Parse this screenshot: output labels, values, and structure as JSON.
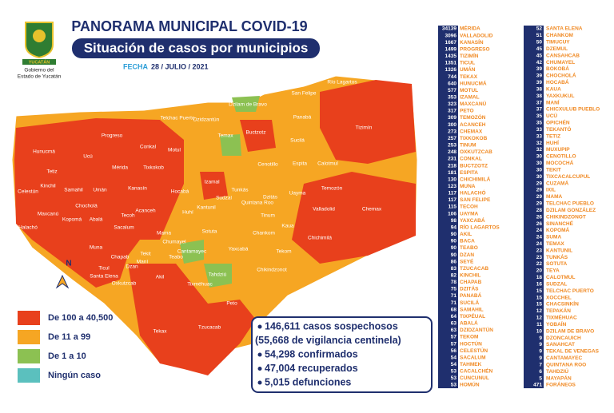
{
  "header": {
    "title": "PANORAMA MUNICIPAL COVID-19",
    "subtitle": "Situación de casos por municipios",
    "date_label": "FECHA",
    "date": "28 / JULIO / 2021",
    "logo_text": "YUCATÁN",
    "government": [
      "Gobierno del",
      "Estado de Yucatán"
    ]
  },
  "map": {
    "north": "N",
    "labels": [
      "Río Lagartos",
      "San Felipe",
      "Dzilam de Bravo",
      "Tizimín",
      "Panabá",
      "Buctzotz",
      "Sucilá",
      "Espita",
      "Calotmul",
      "Temozón",
      "Chemax",
      "Valladolid",
      "Uayma",
      "Tinum",
      "Kaua",
      "Chichimilá",
      "Chankom",
      "Tekom",
      "Chikindzonot",
      "Yaxcabá",
      "Sotuta",
      "Cenotillo",
      "Dzitás",
      "Tunkás",
      "Quintana Roo",
      "Temax",
      "Izamal",
      "Sudzal",
      "Kantunil",
      "Hocabá",
      "Huhí",
      "Cantamayec",
      "Tahdziú",
      "Peto",
      "Tzucacab",
      "Tekax",
      "Akil",
      "Oxkutzcab",
      "Ticul",
      "Santa Elena",
      "Muna",
      "Sacalum",
      "Abalá",
      "Kopomá",
      "Chocholá",
      "Maxcanú",
      "Halachó",
      "Celestún",
      "Kinchil",
      "Samahil",
      "Umán",
      "Tetiz",
      "Hunucmá",
      "Ucú",
      "Mérida",
      "Progreso",
      "Kanasín",
      "Acanceh",
      "Tecoh",
      "Tekit",
      "Mama",
      "Chumayel",
      "Teabo",
      "Chapab",
      "Dzan",
      "Maní",
      "Motul",
      "Conkal",
      "Tixkokob",
      "Telchac Puerto",
      "Dzidzantún",
      "Tixméhuac"
    ]
  },
  "legend": [
    {
      "label": "De 100 a 40,500",
      "color": "#e8401c"
    },
    {
      "label": "De 11 a 99",
      "color": "#f6a623"
    },
    {
      "label": "De 1 a 10",
      "color": "#8cc152"
    },
    {
      "label": "Ningún caso",
      "color": "#5bc0be"
    }
  ],
  "summary": [
    "146,611 casos sospechosos",
    "(55,668 de vigilancia centinela)",
    "54,298 confirmados",
    "47,004 recuperados",
    "5,015 defunciones"
  ],
  "table": {
    "columns": [
      [
        [
          34139,
          "MÉRIDA"
        ],
        [
          3096,
          "VALLADOLID"
        ],
        [
          1667,
          "KANASÍN"
        ],
        [
          1499,
          "PROGRESO"
        ],
        [
          1435,
          "TIZIMÍN"
        ],
        [
          1351,
          "TICUL"
        ],
        [
          1326,
          "UMÁN"
        ],
        [
          744,
          "TEKAX"
        ],
        [
          640,
          "HUNUCMÁ"
        ],
        [
          577,
          "MOTUL"
        ],
        [
          353,
          "IZAMAL"
        ],
        [
          323,
          "MAXCANÚ"
        ],
        [
          317,
          "PETO"
        ],
        [
          309,
          "TEMOZÓN"
        ],
        [
          300,
          "ACANCEH"
        ],
        [
          273,
          "CHEMAX"
        ],
        [
          257,
          "TIXKOKOB"
        ],
        [
          253,
          "TINUM"
        ],
        [
          248,
          "OXKUTZCAB"
        ],
        [
          231,
          "CONKAL"
        ],
        [
          218,
          "BUCTZOTZ"
        ],
        [
          181,
          "ESPITA"
        ],
        [
          130,
          "CHICHIMILÁ"
        ],
        [
          123,
          "MUNA"
        ],
        [
          117,
          "HALACHÓ"
        ],
        [
          117,
          "SAN FELIPE"
        ],
        [
          115,
          "TECOH"
        ],
        [
          106,
          "UAYMA"
        ],
        [
          98,
          "YAXCABÁ"
        ],
        [
          94,
          "RÍO LAGARTOS"
        ],
        [
          90,
          "AKIL"
        ],
        [
          90,
          "BACA"
        ],
        [
          90,
          "TEABO"
        ],
        [
          90,
          "DZAN"
        ],
        [
          86,
          "SEYÉ"
        ],
        [
          83,
          "TZUCACAB"
        ],
        [
          82,
          "KINCHIL"
        ],
        [
          78,
          "CHAPAB"
        ],
        [
          75,
          "DZITÁS"
        ],
        [
          71,
          "PANABÁ"
        ],
        [
          71,
          "SUCILÁ"
        ],
        [
          68,
          "SAMAHIL"
        ],
        [
          64,
          "TIXPÉUAL"
        ],
        [
          63,
          "ABALÁ"
        ],
        [
          63,
          "DZIDZANTÚN"
        ],
        [
          57,
          "TEKOM"
        ],
        [
          57,
          "HOCTÚN"
        ],
        [
          56,
          "CELESTÚN"
        ],
        [
          54,
          "SACALUM"
        ],
        [
          54,
          "TAHMEK"
        ],
        [
          53,
          "CACALCHÉN"
        ],
        [
          53,
          "CUNCUNUL"
        ],
        [
          53,
          "HOMÚN"
        ]
      ],
      [
        [
          52,
          "SANTA ELENA"
        ],
        [
          51,
          "CHANKOM"
        ],
        [
          50,
          "TIMUCUY"
        ],
        [
          45,
          "DZEMUL"
        ],
        [
          45,
          "CANSAHCAB"
        ],
        [
          42,
          "CHUMAYEL"
        ],
        [
          39,
          "BOKOBÁ"
        ],
        [
          39,
          "CHOCHOLÁ"
        ],
        [
          39,
          "HOCABÁ"
        ],
        [
          38,
          "KAUA"
        ],
        [
          38,
          "YAXKUKUL"
        ],
        [
          37,
          "MANÍ"
        ],
        [
          37,
          "CHICXULUB PUEBLO"
        ],
        [
          35,
          "UCÚ"
        ],
        [
          35,
          "OPICHÉN"
        ],
        [
          33,
          "TEKANTÓ"
        ],
        [
          33,
          "TETIZ"
        ],
        [
          32,
          "HUHÍ"
        ],
        [
          32,
          "MUXUPIP"
        ],
        [
          30,
          "CENOTILLO"
        ],
        [
          30,
          "MOCOCHÁ"
        ],
        [
          30,
          "TEKIT"
        ],
        [
          30,
          "TIXCACALCUPUL"
        ],
        [
          29,
          "CUZAMÁ"
        ],
        [
          29,
          "IXIL"
        ],
        [
          29,
          "MAMA"
        ],
        [
          29,
          "TELCHAC PUEBLO"
        ],
        [
          28,
          "DZILAM GONZÁLEZ"
        ],
        [
          26,
          "CHIKINDZONOT"
        ],
        [
          26,
          "SINANCHÉ"
        ],
        [
          24,
          "KOPOMÁ"
        ],
        [
          24,
          "SUMA"
        ],
        [
          24,
          "TEMAX"
        ],
        [
          23,
          "KANTUNIL"
        ],
        [
          23,
          "TUNKÁS"
        ],
        [
          22,
          "SOTUTA"
        ],
        [
          20,
          "TEYA"
        ],
        [
          18,
          "CALOTMUL"
        ],
        [
          16,
          "SUDZAL"
        ],
        [
          15,
          "TELCHAC PUERTO"
        ],
        [
          15,
          "XOCCHEL"
        ],
        [
          15,
          "CHACSINKÍN"
        ],
        [
          12,
          "TEPAKÁN"
        ],
        [
          12,
          "TIXMÉHUAC"
        ],
        [
          11,
          "YOBAÍN"
        ],
        [
          10,
          "DZILAM DE BRAVO"
        ],
        [
          9,
          "DZONCAUICH"
        ],
        [
          9,
          "SANAHCAT"
        ],
        [
          9,
          "TEKAL DE VENEGAS"
        ],
        [
          9,
          "CANTAMAYEC"
        ],
        [
          7,
          "QUINTANA ROO"
        ],
        [
          6,
          "TAHDZIÚ"
        ],
        [
          5,
          "MAYAPÁN"
        ],
        [
          471,
          "FORÁNEOS"
        ]
      ]
    ]
  }
}
